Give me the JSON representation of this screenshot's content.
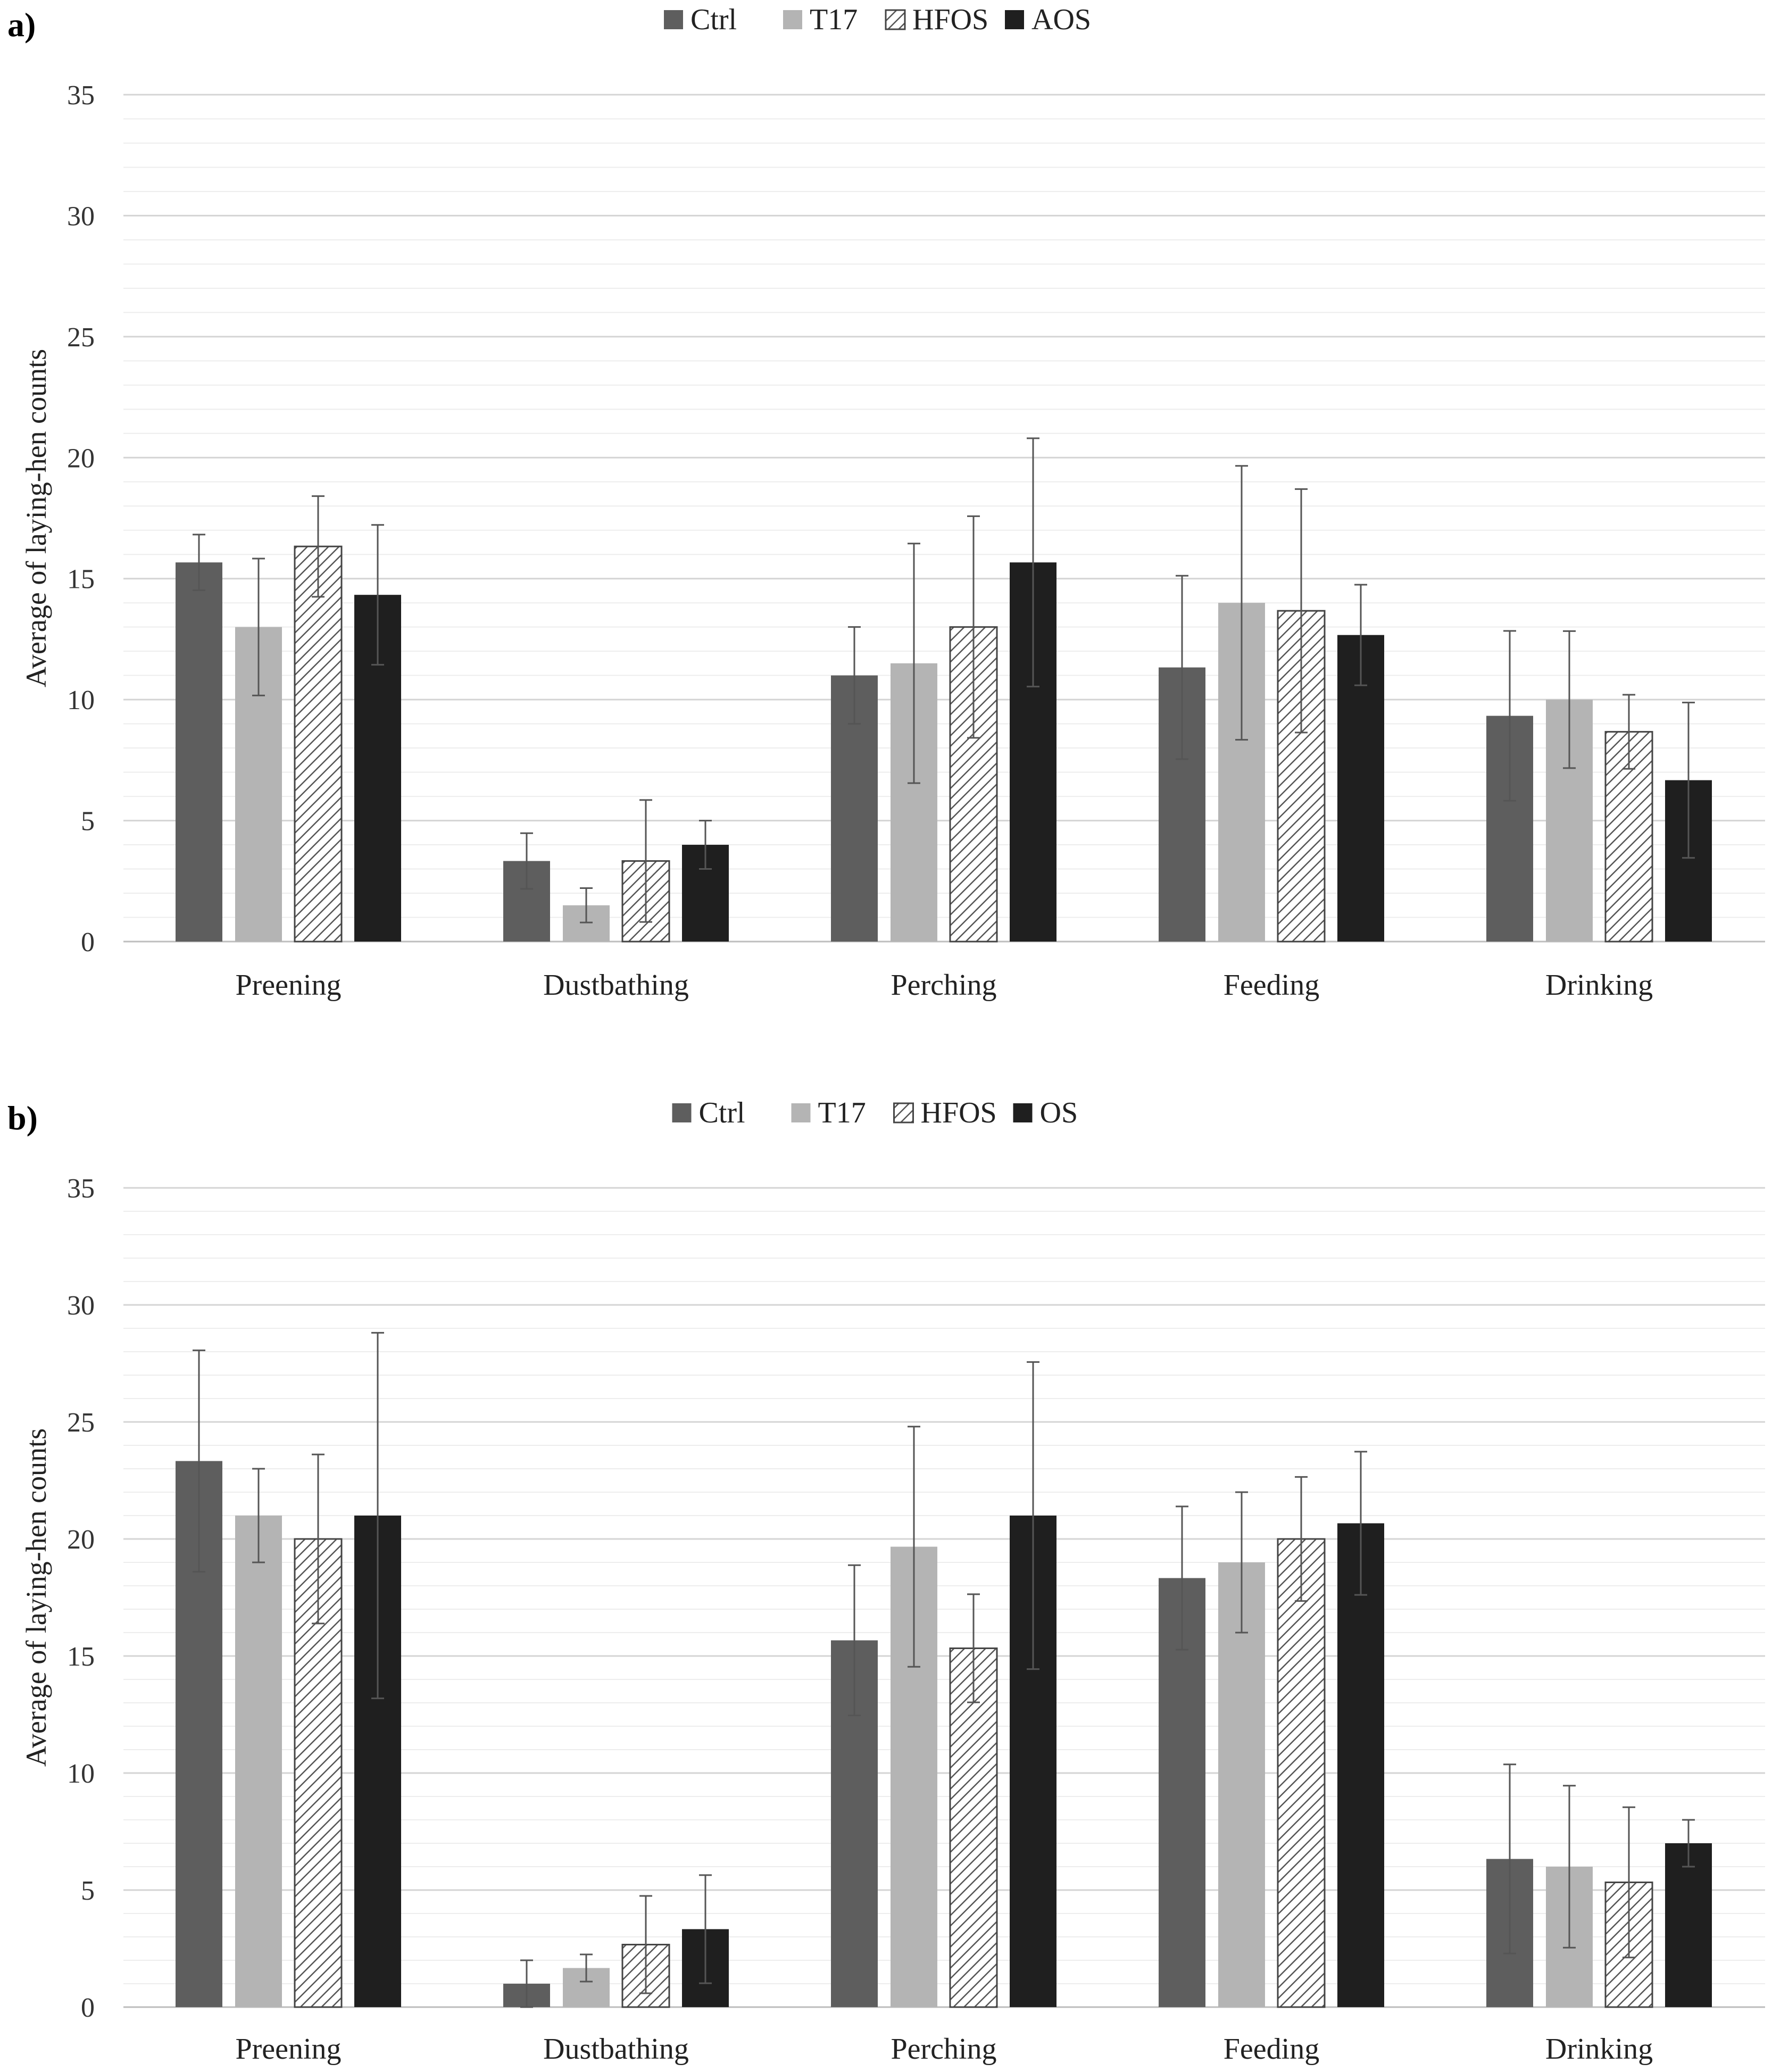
{
  "chart_data": [
    {
      "type": "bar",
      "panel_label": "a)",
      "title": "",
      "xlabel": "",
      "ylabel": "Average of laying-hen counts",
      "ylim": [
        0,
        35
      ],
      "y_ticks": [
        "0",
        "5",
        "10",
        "15",
        "20",
        "25",
        "30",
        "35"
      ],
      "grid": true,
      "legend_position": "top-center",
      "categories": [
        "Preening",
        "Dustbathing",
        "Perching",
        "Feeding",
        "Drinking"
      ],
      "series": [
        {
          "name": "Ctrl",
          "color": "#5e5e5e",
          "pattern": "solid",
          "values": [
            15.67,
            3.33,
            11.0,
            11.33,
            9.33
          ],
          "errors": [
            1.15,
            1.15,
            2.0,
            3.79,
            3.51
          ]
        },
        {
          "name": "T17",
          "color": "#b4b4b4",
          "pattern": "solid",
          "values": [
            13.0,
            1.5,
            11.5,
            14.0,
            10.0
          ],
          "errors": [
            2.83,
            0.71,
            4.95,
            5.66,
            2.83
          ]
        },
        {
          "name": "HFOS",
          "color": "#ffffff",
          "pattern": "hatch",
          "values": [
            16.33,
            3.33,
            13.0,
            13.67,
            8.67
          ],
          "errors": [
            2.08,
            2.52,
            4.58,
            5.03,
            1.53
          ]
        },
        {
          "name": "AOS",
          "color": "#1f1f1f",
          "pattern": "solid",
          "values": [
            14.33,
            4.0,
            15.67,
            12.67,
            6.67
          ],
          "errors": [
            2.89,
            1.0,
            5.13,
            2.08,
            3.21
          ]
        }
      ]
    },
    {
      "type": "bar",
      "panel_label": "b)",
      "title": "",
      "xlabel": "",
      "ylabel": "Average of laying-hen counts",
      "ylim": [
        0,
        35
      ],
      "y_ticks": [
        "0",
        "5",
        "10",
        "15",
        "20",
        "25",
        "30",
        "35"
      ],
      "grid": true,
      "legend_position": "top-center",
      "categories": [
        "Preening",
        "Dustbathing",
        "Perching",
        "Feeding",
        "Drinking"
      ],
      "series": [
        {
          "name": "Ctrl",
          "color": "#5e5e5e",
          "pattern": "solid",
          "values": [
            23.33,
            1.0,
            15.67,
            18.33,
            6.33
          ],
          "errors": [
            4.73,
            1.0,
            3.21,
            3.06,
            4.04
          ]
        },
        {
          "name": "T17",
          "color": "#b4b4b4",
          "pattern": "solid",
          "values": [
            21.0,
            1.67,
            19.67,
            19.0,
            6.0
          ],
          "errors": [
            2.0,
            0.58,
            5.13,
            3.0,
            3.46
          ]
        },
        {
          "name": "HFOS",
          "color": "#ffffff",
          "pattern": "hatch",
          "values": [
            20.0,
            2.67,
            15.33,
            20.0,
            5.33
          ],
          "errors": [
            3.61,
            2.08,
            2.31,
            2.65,
            3.21
          ]
        },
        {
          "name": "OS",
          "color": "#1f1f1f",
          "pattern": "solid",
          "values": [
            21.0,
            3.33,
            21.0,
            20.67,
            7.0
          ],
          "errors": [
            7.81,
            2.31,
            6.56,
            3.06,
            1.0
          ]
        }
      ]
    }
  ]
}
